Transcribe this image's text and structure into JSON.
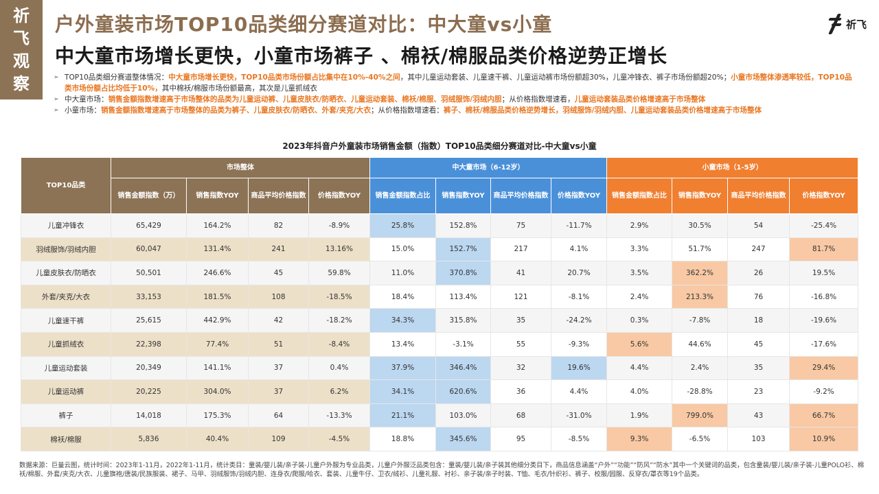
{
  "logo_left": [
    "祈",
    "飞",
    "观",
    "察"
  ],
  "logo_right": "祈飞",
  "title_main": "户外童装市场TOP10品类细分赛道对比：中大童vs小童",
  "title_sub": "中大童市场增长更快，小童市场裤子 、棉袄/棉服品类价格逆势正增长",
  "bullets": [
    [
      {
        "t": "TOP10品类细分赛道整体情况：",
        "h": false
      },
      {
        "t": "中大童市场增长更快，TOP10品类市场份额占比集中在10%-40%之间",
        "h": true
      },
      {
        "t": "，其中儿童运动套装、儿童速干裤、儿童运动裤市场份额超30%，儿童冲锋衣、裤子市场份额超20%；",
        "h": false
      },
      {
        "t": "小童市场整体渗透率较低，TOP10品类市场份额占比均低于10%，",
        "h": true
      },
      {
        "t": "其中棉袄/棉服市场份额最高，其次是儿童抓绒衣",
        "h": false
      }
    ],
    [
      {
        "t": "中大童市场：",
        "h": false
      },
      {
        "t": "销售金额指数增速高于市场整体的品类为儿童运动裤、儿童皮肤衣/防晒衣、儿童运动套装、棉袄/棉服、羽绒服饰/羽绒内胆",
        "h": true
      },
      {
        "t": "；从价格指数增速看，",
        "h": false
      },
      {
        "t": "儿童运动套装品类价格增速高于市场整体",
        "h": true
      }
    ],
    [
      {
        "t": "小童市场：",
        "h": false
      },
      {
        "t": "销售金额指数增速高于市场整体的品类为裤子、儿童皮肤衣/防晒衣、外套/夹克/大衣",
        "h": true
      },
      {
        "t": "；从价格指数增速看：",
        "h": false
      },
      {
        "t": "裤子、棉袄/棉服品类价格逆势增长，羽绒服饰/羽绒内胆、儿童运动套装品类价格增速高于市场整体",
        "h": true
      }
    ]
  ],
  "table_title": "2023年抖音户外童装市场销售金额（指数）TOP10品类细分赛道对比-中大童vs小童",
  "header": {
    "category": "TOP10品类",
    "groups": [
      "市场整体",
      "中大童市场（6-12岁）",
      "小童市场（1-5岁）"
    ],
    "overall_cols": [
      "销售金额指数（万）",
      "销售指数YOY",
      "商品平均价格指数",
      "价格指数YOY"
    ],
    "mid_cols": [
      "销售金额指数占比",
      "销售指数YOY",
      "商品平均价格指数",
      "价格指数YOY"
    ],
    "small_cols": [
      "销售金额指数占比",
      "销售指数YOY",
      "商品平均价格指数",
      "价格指数YOY"
    ]
  },
  "rows": [
    {
      "name": "儿童冲锋衣",
      "v": [
        "65,429",
        "164.2%",
        "82",
        "-8.9%",
        "25.8%",
        "152.8%",
        "75",
        "-11.7%",
        "2.9%",
        "30.5%",
        "54",
        "-25.4%"
      ],
      "hl": [
        4
      ]
    },
    {
      "name": "羽绒服饰/羽绒内胆",
      "v": [
        "60,047",
        "131.4%",
        "241",
        "13.16%",
        "15.0%",
        "152.7%",
        "217",
        "4.1%",
        "3.3%",
        "51.7%",
        "247",
        "81.7%"
      ],
      "hl": [
        5,
        11
      ]
    },
    {
      "name": "儿童皮肤衣/防晒衣",
      "v": [
        "50,501",
        "246.6%",
        "45",
        "59.8%",
        "11.0%",
        "370.8%",
        "41",
        "20.7%",
        "3.5%",
        "362.2%",
        "26",
        "19.5%"
      ],
      "hl": [
        5,
        9
      ]
    },
    {
      "name": "外套/夹克/大衣",
      "v": [
        "33,153",
        "181.5%",
        "108",
        "-18.5%",
        "18.4%",
        "113.4%",
        "121",
        "-8.1%",
        "2.4%",
        "213.3%",
        "76",
        "-16.8%"
      ],
      "hl": [
        9
      ]
    },
    {
      "name": "儿童速干裤",
      "v": [
        "25,615",
        "442.9%",
        "42",
        "-18.2%",
        "34.3%",
        "315.8%",
        "35",
        "-24.2%",
        "0.3%",
        "-7.8%",
        "18",
        "-19.6%"
      ],
      "hl": [
        4
      ]
    },
    {
      "name": "儿童抓绒衣",
      "v": [
        "22,398",
        "77.4%",
        "51",
        "-8.4%",
        "13.4%",
        "-3.1%",
        "55",
        "-9.3%",
        "5.6%",
        "44.6%",
        "45",
        "-17.6%"
      ],
      "hl": [
        8
      ]
    },
    {
      "name": "儿童运动套装",
      "v": [
        "20,349",
        "141.1%",
        "37",
        "0.4%",
        "37.9%",
        "346.4%",
        "32",
        "19.6%",
        "4.4%",
        "2.4%",
        "35",
        "29.4%"
      ],
      "hl": [
        4,
        5,
        7,
        11
      ]
    },
    {
      "name": "儿童运动裤",
      "v": [
        "20,225",
        "304.0%",
        "37",
        "6.2%",
        "34.1%",
        "620.6%",
        "36",
        "4.4%",
        "4.0%",
        "-28.8%",
        "23",
        "-9.2%"
      ],
      "hl": [
        4,
        5
      ]
    },
    {
      "name": "裤子",
      "v": [
        "14,018",
        "175.3%",
        "64",
        "-13.3%",
        "21.1%",
        "103.0%",
        "68",
        "-31.0%",
        "1.9%",
        "799.0%",
        "43",
        "66.7%"
      ],
      "hl": [
        4,
        9,
        11
      ]
    },
    {
      "name": "棉袄/棉服",
      "v": [
        "5,836",
        "40.4%",
        "109",
        "-4.5%",
        "18.8%",
        "345.6%",
        "95",
        "-8.5%",
        "9.3%",
        "-6.5%",
        "103",
        "10.9%"
      ],
      "hl": [
        5,
        8,
        11
      ]
    }
  ],
  "footnote": "数据来源：巨量云图，统计时间：2023年1-11月，2022年1-11月，统计类目：童装/婴儿装/亲子装-儿童户外服为专业品类，儿童户外服泛品类包含：童装/婴儿装/亲子装其他细分类目下，商品信息涵盖“户外”“功能”“防风”“防水”其中一个关键词的品类，包含童装/婴儿装/亲子装-儿童POLO衫、棉袄/棉服、外套/夹克/大衣、儿童旗袍/唐装/民族服装、裙子、马甲、羽绒服饰/羽绒内胆、连身衣/爬服/哈衣、套装、儿童牛仔、卫衣/绒衫、儿童礼服、衬衫、亲子装/亲子时装、T恤、毛衣/针织衫、裤子、校服/园服、反穿衣/罩衣等19个品类。"
}
